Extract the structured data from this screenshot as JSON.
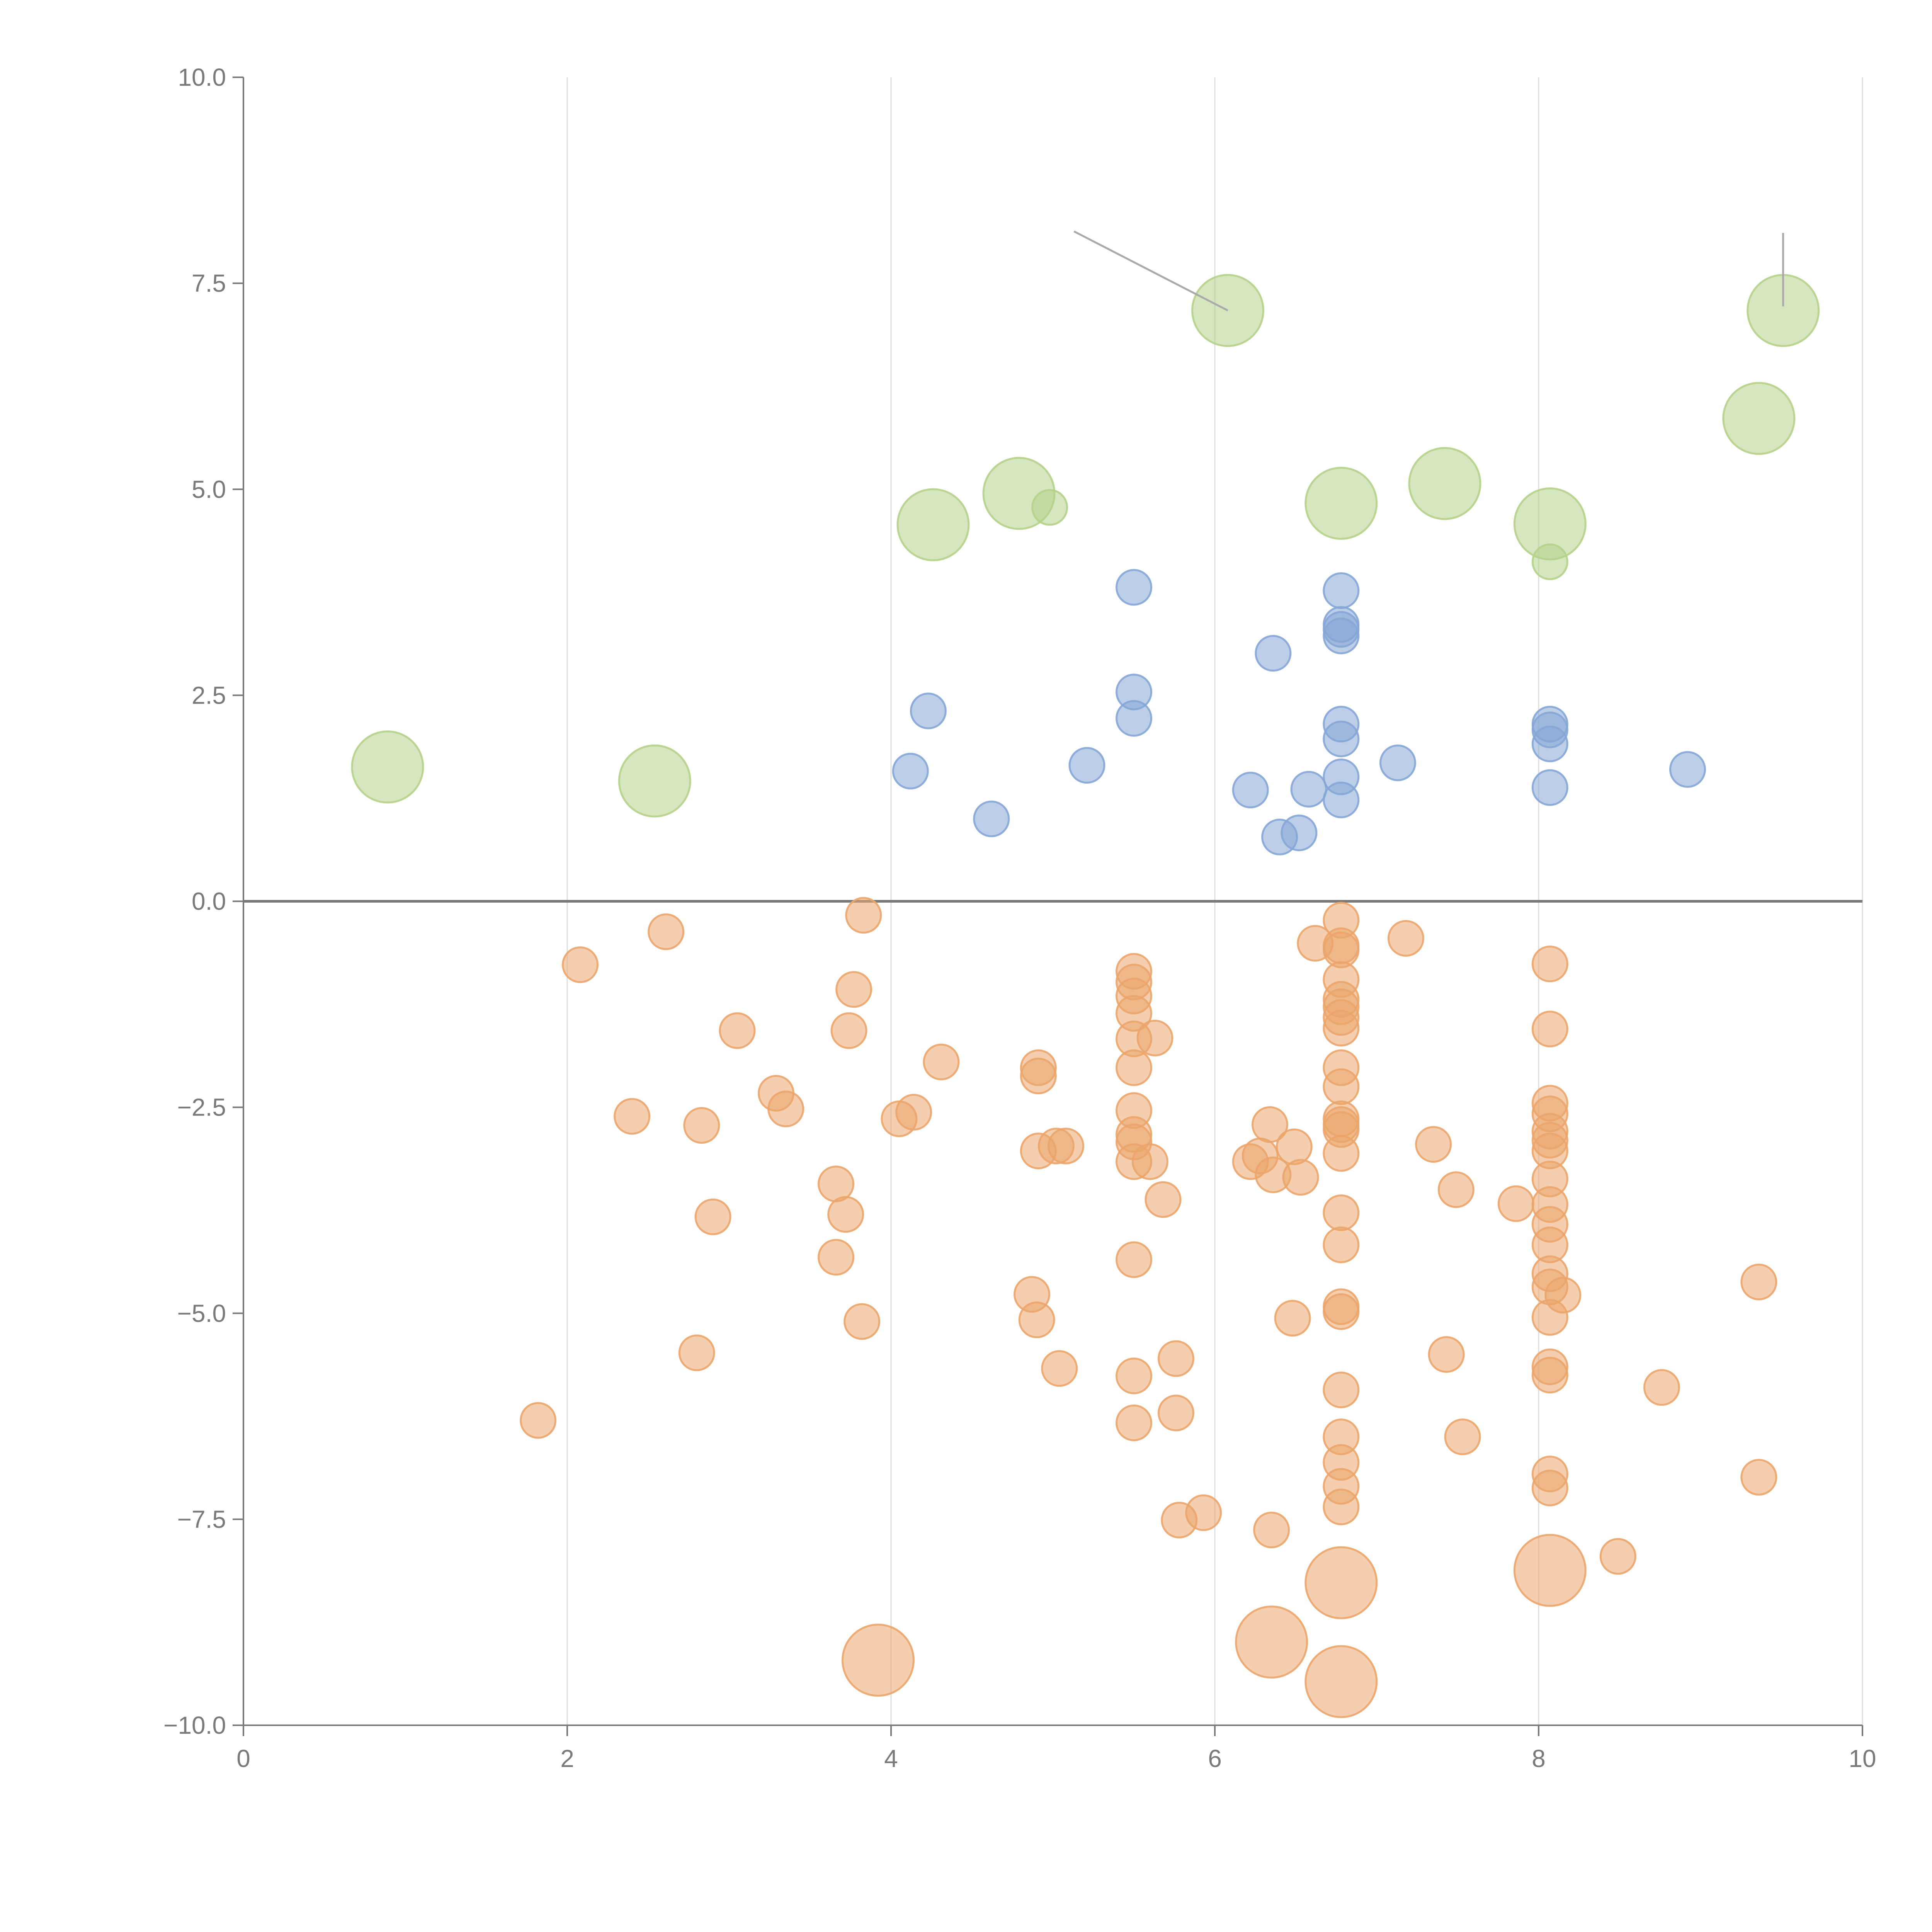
{
  "chart_data": {
    "type": "scatter",
    "title": "",
    "xlabel": "",
    "ylabel": "",
    "xlim": [
      0,
      10
    ],
    "ylim": [
      -10,
      10
    ],
    "x_ticks": [
      "0",
      "2",
      "4",
      "6",
      "8",
      "10"
    ],
    "y_ticks": [
      "−10.0",
      "−7.5",
      "−5.0",
      "−2.5",
      "0.0",
      "2.5",
      "5.0",
      "7.5",
      "10.0"
    ],
    "grid": "vertical",
    "legend": "none",
    "colors": {
      "green": "#b5d18a",
      "blue": "#85a6d6",
      "orange": "#eba56b",
      "axis": "#7a7a7a",
      "grid": "#dddddd",
      "zero_line": "#7a7a7a",
      "connector": "#aaaaaa"
    },
    "series": [
      {
        "name": "green",
        "color_key": "green",
        "points": [
          {
            "x": 0.89,
            "y": 1.63,
            "size": "large"
          },
          {
            "x": 2.54,
            "y": 1.46,
            "size": "large"
          },
          {
            "x": 4.26,
            "y": 4.57,
            "size": "large"
          },
          {
            "x": 4.79,
            "y": 4.95,
            "size": "large"
          },
          {
            "x": 4.98,
            "y": 4.78,
            "size": "small"
          },
          {
            "x": 6.08,
            "y": 7.17,
            "size": "large"
          },
          {
            "x": 6.78,
            "y": 4.83,
            "size": "large"
          },
          {
            "x": 7.42,
            "y": 5.07,
            "size": "large"
          },
          {
            "x": 8.07,
            "y": 4.58,
            "size": "large"
          },
          {
            "x": 8.07,
            "y": 4.12,
            "size": "small"
          },
          {
            "x": 9.36,
            "y": 5.86,
            "size": "large"
          },
          {
            "x": 9.51,
            "y": 7.17,
            "size": "large"
          }
        ]
      },
      {
        "name": "blue",
        "color_key": "blue",
        "points": [
          {
            "x": 4.12,
            "y": 1.58,
            "size": "small"
          },
          {
            "x": 4.23,
            "y": 2.31,
            "size": "small"
          },
          {
            "x": 4.62,
            "y": 1.0,
            "size": "small"
          },
          {
            "x": 5.21,
            "y": 1.65,
            "size": "small"
          },
          {
            "x": 5.5,
            "y": 3.81,
            "size": "small"
          },
          {
            "x": 5.5,
            "y": 2.54,
            "size": "small"
          },
          {
            "x": 5.5,
            "y": 2.22,
            "size": "small"
          },
          {
            "x": 6.22,
            "y": 1.35,
            "size": "small"
          },
          {
            "x": 6.36,
            "y": 3.01,
            "size": "small"
          },
          {
            "x": 6.4,
            "y": 0.78,
            "size": "small"
          },
          {
            "x": 6.52,
            "y": 0.83,
            "size": "small"
          },
          {
            "x": 6.58,
            "y": 1.36,
            "size": "small"
          },
          {
            "x": 6.78,
            "y": 3.77,
            "size": "small"
          },
          {
            "x": 6.78,
            "y": 3.36,
            "size": "small"
          },
          {
            "x": 6.78,
            "y": 3.3,
            "size": "small"
          },
          {
            "x": 6.78,
            "y": 3.22,
            "size": "small"
          },
          {
            "x": 6.78,
            "y": 2.15,
            "size": "small"
          },
          {
            "x": 6.78,
            "y": 1.97,
            "size": "small"
          },
          {
            "x": 6.78,
            "y": 1.51,
            "size": "small"
          },
          {
            "x": 6.78,
            "y": 1.23,
            "size": "small"
          },
          {
            "x": 7.13,
            "y": 1.68,
            "size": "small"
          },
          {
            "x": 8.07,
            "y": 2.15,
            "size": "small"
          },
          {
            "x": 8.07,
            "y": 2.08,
            "size": "small"
          },
          {
            "x": 8.07,
            "y": 1.91,
            "size": "small"
          },
          {
            "x": 8.07,
            "y": 1.38,
            "size": "small"
          },
          {
            "x": 8.92,
            "y": 1.6,
            "size": "small"
          }
        ]
      },
      {
        "name": "orange",
        "color_key": "orange",
        "points": [
          {
            "x": 1.82,
            "y": -6.3,
            "size": "small"
          },
          {
            "x": 2.08,
            "y": -0.77,
            "size": "small"
          },
          {
            "x": 2.4,
            "y": -2.61,
            "size": "small"
          },
          {
            "x": 2.61,
            "y": -0.37,
            "size": "small"
          },
          {
            "x": 2.8,
            "y": -5.48,
            "size": "small"
          },
          {
            "x": 2.83,
            "y": -2.72,
            "size": "small"
          },
          {
            "x": 2.9,
            "y": -3.83,
            "size": "small"
          },
          {
            "x": 3.05,
            "y": -1.57,
            "size": "small"
          },
          {
            "x": 3.29,
            "y": -2.33,
            "size": "small"
          },
          {
            "x": 3.35,
            "y": -2.52,
            "size": "small"
          },
          {
            "x": 3.66,
            "y": -3.43,
            "size": "small"
          },
          {
            "x": 3.66,
            "y": -4.32,
            "size": "small"
          },
          {
            "x": 3.72,
            "y": -3.8,
            "size": "small"
          },
          {
            "x": 3.74,
            "y": -1.57,
            "size": "small"
          },
          {
            "x": 3.77,
            "y": -1.07,
            "size": "small"
          },
          {
            "x": 3.82,
            "y": -5.1,
            "size": "small"
          },
          {
            "x": 3.83,
            "y": -0.17,
            "size": "small"
          },
          {
            "x": 3.92,
            "y": -9.21,
            "size": "large"
          },
          {
            "x": 4.05,
            "y": -2.64,
            "size": "small"
          },
          {
            "x": 4.14,
            "y": -2.56,
            "size": "small"
          },
          {
            "x": 4.31,
            "y": -1.95,
            "size": "small"
          },
          {
            "x": 4.87,
            "y": -4.77,
            "size": "small"
          },
          {
            "x": 4.9,
            "y": -5.08,
            "size": "small"
          },
          {
            "x": 4.91,
            "y": -3.03,
            "size": "small"
          },
          {
            "x": 4.91,
            "y": -2.02,
            "size": "small"
          },
          {
            "x": 4.91,
            "y": -2.12,
            "size": "small"
          },
          {
            "x": 5.02,
            "y": -2.97,
            "size": "small"
          },
          {
            "x": 5.04,
            "y": -5.67,
            "size": "small"
          },
          {
            "x": 5.08,
            "y": -2.97,
            "size": "small"
          },
          {
            "x": 5.5,
            "y": -0.85,
            "size": "small"
          },
          {
            "x": 5.5,
            "y": -0.98,
            "size": "small"
          },
          {
            "x": 5.5,
            "y": -1.15,
            "size": "small"
          },
          {
            "x": 5.5,
            "y": -1.36,
            "size": "small"
          },
          {
            "x": 5.5,
            "y": -1.67,
            "size": "small"
          },
          {
            "x": 5.5,
            "y": -2.02,
            "size": "small"
          },
          {
            "x": 5.5,
            "y": -2.54,
            "size": "small"
          },
          {
            "x": 5.5,
            "y": -2.83,
            "size": "small"
          },
          {
            "x": 5.5,
            "y": -2.92,
            "size": "small"
          },
          {
            "x": 5.5,
            "y": -3.16,
            "size": "small"
          },
          {
            "x": 5.5,
            "y": -4.35,
            "size": "small"
          },
          {
            "x": 5.5,
            "y": -5.76,
            "size": "small"
          },
          {
            "x": 5.5,
            "y": -6.33,
            "size": "small"
          },
          {
            "x": 5.6,
            "y": -3.16,
            "size": "small"
          },
          {
            "x": 5.63,
            "y": -1.66,
            "size": "small"
          },
          {
            "x": 5.68,
            "y": -3.62,
            "size": "small"
          },
          {
            "x": 5.76,
            "y": -5.55,
            "size": "small"
          },
          {
            "x": 5.76,
            "y": -6.21,
            "size": "small"
          },
          {
            "x": 5.78,
            "y": -7.51,
            "size": "small"
          },
          {
            "x": 5.93,
            "y": -7.42,
            "size": "small"
          },
          {
            "x": 6.22,
            "y": -3.16,
            "size": "small"
          },
          {
            "x": 6.28,
            "y": -3.09,
            "size": "small"
          },
          {
            "x": 6.34,
            "y": -2.71,
            "size": "small"
          },
          {
            "x": 6.35,
            "y": -7.63,
            "size": "small"
          },
          {
            "x": 6.35,
            "y": -8.99,
            "size": "large"
          },
          {
            "x": 6.36,
            "y": -3.32,
            "size": "small"
          },
          {
            "x": 6.48,
            "y": -5.06,
            "size": "small"
          },
          {
            "x": 6.49,
            "y": -2.98,
            "size": "small"
          },
          {
            "x": 6.53,
            "y": -3.35,
            "size": "small"
          },
          {
            "x": 6.62,
            "y": -0.51,
            "size": "small"
          },
          {
            "x": 6.78,
            "y": -0.23,
            "size": "small"
          },
          {
            "x": 6.78,
            "y": -0.54,
            "size": "small"
          },
          {
            "x": 6.78,
            "y": -0.59,
            "size": "small"
          },
          {
            "x": 6.78,
            "y": -0.95,
            "size": "small"
          },
          {
            "x": 6.78,
            "y": -1.19,
            "size": "small"
          },
          {
            "x": 6.78,
            "y": -1.28,
            "size": "small"
          },
          {
            "x": 6.78,
            "y": -1.41,
            "size": "small"
          },
          {
            "x": 6.78,
            "y": -1.54,
            "size": "small"
          },
          {
            "x": 6.78,
            "y": -2.02,
            "size": "small"
          },
          {
            "x": 6.78,
            "y": -2.25,
            "size": "small"
          },
          {
            "x": 6.78,
            "y": -2.64,
            "size": "small"
          },
          {
            "x": 6.78,
            "y": -2.71,
            "size": "small"
          },
          {
            "x": 6.78,
            "y": -2.77,
            "size": "small"
          },
          {
            "x": 6.78,
            "y": -3.06,
            "size": "small"
          },
          {
            "x": 6.78,
            "y": -3.78,
            "size": "small"
          },
          {
            "x": 6.78,
            "y": -4.17,
            "size": "small"
          },
          {
            "x": 6.78,
            "y": -4.92,
            "size": "small"
          },
          {
            "x": 6.78,
            "y": -4.98,
            "size": "small"
          },
          {
            "x": 6.78,
            "y": -5.93,
            "size": "small"
          },
          {
            "x": 6.78,
            "y": -6.5,
            "size": "small"
          },
          {
            "x": 6.78,
            "y": -6.81,
            "size": "small"
          },
          {
            "x": 6.78,
            "y": -7.1,
            "size": "small"
          },
          {
            "x": 6.78,
            "y": -7.35,
            "size": "small"
          },
          {
            "x": 6.78,
            "y": -8.27,
            "size": "large"
          },
          {
            "x": 6.78,
            "y": -9.47,
            "size": "large"
          },
          {
            "x": 7.18,
            "y": -0.45,
            "size": "small"
          },
          {
            "x": 7.35,
            "y": -2.95,
            "size": "small"
          },
          {
            "x": 7.43,
            "y": -5.5,
            "size": "small"
          },
          {
            "x": 7.49,
            "y": -3.5,
            "size": "small"
          },
          {
            "x": 7.53,
            "y": -6.5,
            "size": "small"
          },
          {
            "x": 7.86,
            "y": -3.67,
            "size": "small"
          },
          {
            "x": 8.07,
            "y": -0.76,
            "size": "small"
          },
          {
            "x": 8.07,
            "y": -1.55,
            "size": "small"
          },
          {
            "x": 8.07,
            "y": -2.45,
            "size": "small"
          },
          {
            "x": 8.07,
            "y": -2.58,
            "size": "small"
          },
          {
            "x": 8.07,
            "y": -2.79,
            "size": "small"
          },
          {
            "x": 8.07,
            "y": -2.9,
            "size": "small"
          },
          {
            "x": 8.07,
            "y": -3.03,
            "size": "small"
          },
          {
            "x": 8.07,
            "y": -3.37,
            "size": "small"
          },
          {
            "x": 8.07,
            "y": -3.68,
            "size": "small"
          },
          {
            "x": 8.07,
            "y": -3.92,
            "size": "small"
          },
          {
            "x": 8.07,
            "y": -4.17,
            "size": "small"
          },
          {
            "x": 8.07,
            "y": -4.52,
            "size": "small"
          },
          {
            "x": 8.07,
            "y": -4.68,
            "size": "small"
          },
          {
            "x": 8.07,
            "y": -5.05,
            "size": "small"
          },
          {
            "x": 8.07,
            "y": -5.65,
            "size": "small"
          },
          {
            "x": 8.07,
            "y": -5.75,
            "size": "small"
          },
          {
            "x": 8.07,
            "y": -6.95,
            "size": "small"
          },
          {
            "x": 8.07,
            "y": -7.12,
            "size": "small"
          },
          {
            "x": 8.07,
            "y": -8.12,
            "size": "large"
          },
          {
            "x": 8.15,
            "y": -4.78,
            "size": "small"
          },
          {
            "x": 8.49,
            "y": -7.95,
            "size": "small"
          },
          {
            "x": 8.76,
            "y": -5.9,
            "size": "small"
          },
          {
            "x": 9.36,
            "y": -4.62,
            "size": "small"
          },
          {
            "x": 9.36,
            "y": -6.99,
            "size": "small"
          }
        ]
      }
    ],
    "connectors": [
      {
        "from": [
          5.13,
          8.13
        ],
        "to": [
          6.08,
          7.17
        ]
      },
      {
        "from": [
          9.51,
          8.11
        ],
        "to": [
          9.51,
          7.22
        ]
      }
    ]
  }
}
